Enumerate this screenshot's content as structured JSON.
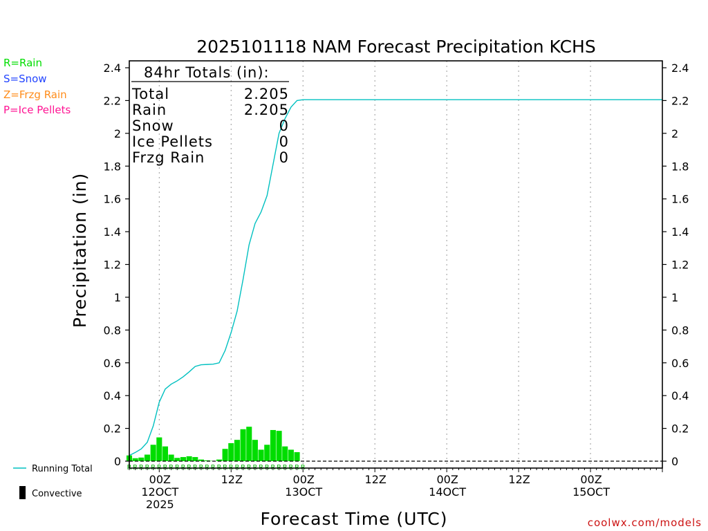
{
  "chart_data": {
    "type": "bar",
    "title": "2025101118 NAM Forecast Precipitation KCHS",
    "xlabel": "Forecast Time (UTC)",
    "ylabel": "Precipitation (in)",
    "ylim": [
      0,
      2.4
    ],
    "xlim_hours": [
      -5,
      84
    ],
    "grid": "vertical dotted every 12h",
    "y_ticks": [
      "0",
      "0.2",
      "0.4",
      "0.6",
      "0.8",
      "1",
      "1.2",
      "1.4",
      "1.6",
      "1.8",
      "2",
      "2.2",
      "2.4"
    ],
    "x_ticks": [
      {
        "hour": 0,
        "lines": [
          "00Z",
          "12OCT",
          "2025"
        ]
      },
      {
        "hour": 12,
        "lines": [
          "12Z"
        ]
      },
      {
        "hour": 24,
        "lines": [
          "00Z",
          "13OCT"
        ]
      },
      {
        "hour": 36,
        "lines": [
          "12Z"
        ]
      },
      {
        "hour": 48,
        "lines": [
          "00Z",
          "14OCT"
        ]
      },
      {
        "hour": 60,
        "lines": [
          "12Z"
        ]
      },
      {
        "hour": 72,
        "lines": [
          "00Z",
          "15OCT"
        ]
      }
    ],
    "legend_top_left": [
      {
        "text": "R=Rain",
        "color": "#00dd00"
      },
      {
        "text": "S=Snow",
        "color": "#2244ff"
      },
      {
        "text": "Z=Frzg Rain",
        "color": "#ff8c1a"
      },
      {
        "text": "P=Ice Pellets",
        "color": "#ff1493"
      }
    ],
    "legend_bottom_left": {
      "running_total": "Running Total",
      "convective": "Convective"
    },
    "totals_box": {
      "header": "84hr Totals (in):",
      "rows": [
        {
          "label": "Total",
          "value": "2.205"
        },
        {
          "label": "Rain",
          "value": "2.205"
        },
        {
          "label": "Snow",
          "value": "0"
        },
        {
          "label": "Ice Pellets",
          "value": "0"
        },
        {
          "label": "Frzg Rain",
          "value": "0"
        }
      ]
    },
    "precip_type_marker": "R",
    "precip_type_hours": [
      -5,
      -4,
      -3,
      -2,
      -1,
      0,
      1,
      2,
      3,
      4,
      5,
      6,
      7,
      8,
      9,
      10,
      11,
      12,
      13,
      14,
      15,
      16,
      17,
      18,
      19,
      20,
      21,
      22,
      23,
      24
    ],
    "series": [
      {
        "name": "Hourly Precipitation",
        "color": "#00dd00",
        "hours": [
          -5,
          -4,
          -3,
          -2,
          -1,
          0,
          1,
          2,
          3,
          4,
          5,
          6,
          7,
          8,
          9,
          10,
          11,
          12,
          13,
          14,
          15,
          16,
          17,
          18,
          19,
          20,
          21,
          22,
          23,
          24
        ],
        "values": [
          0.035,
          0.018,
          0.022,
          0.04,
          0.1,
          0.145,
          0.09,
          0.04,
          0.02,
          0.025,
          0.03,
          0.025,
          0.01,
          0.005,
          0.002,
          0.01,
          0.075,
          0.11,
          0.13,
          0.195,
          0.21,
          0.13,
          0.07,
          0.1,
          0.19,
          0.185,
          0.09,
          0.07,
          0.055,
          0.0
        ]
      },
      {
        "name": "Running Total",
        "color": "#00c0c0",
        "hours": [
          -5,
          -4,
          -3,
          -2,
          -1,
          0,
          1,
          2,
          3,
          4,
          5,
          6,
          7,
          8,
          9,
          10,
          11,
          12,
          13,
          14,
          15,
          16,
          17,
          18,
          19,
          20,
          21,
          22,
          23,
          24,
          84
        ],
        "values": [
          0.035,
          0.053,
          0.075,
          0.115,
          0.215,
          0.36,
          0.44,
          0.47,
          0.49,
          0.515,
          0.545,
          0.578,
          0.588,
          0.59,
          0.592,
          0.6,
          0.675,
          0.785,
          0.915,
          1.11,
          1.32,
          1.45,
          1.52,
          1.62,
          1.81,
          2.0,
          2.09,
          2.16,
          2.2,
          2.205,
          2.205
        ]
      }
    ],
    "watermark": "coolwx.com/models"
  }
}
